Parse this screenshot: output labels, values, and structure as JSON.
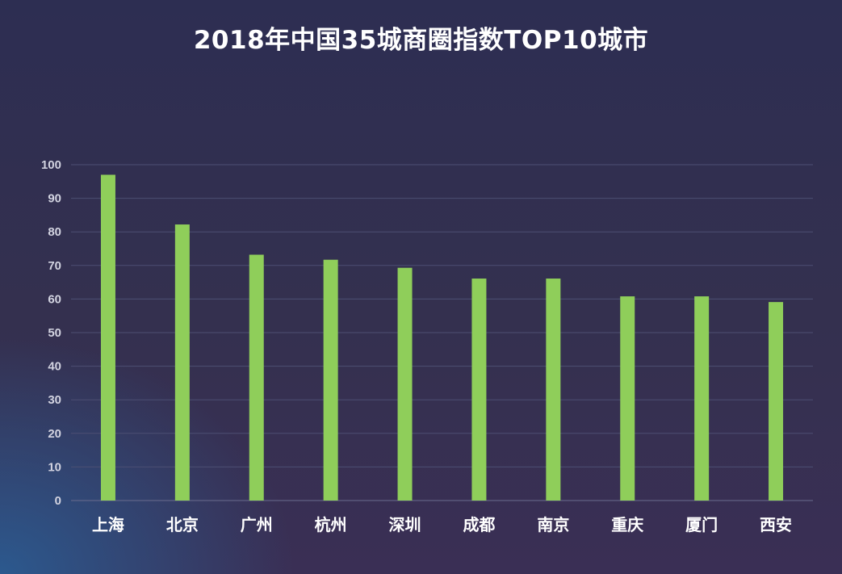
{
  "chart_data": {
    "type": "bar",
    "title": "2018年中国35城商圈指数TOP10城市",
    "categories": [
      "上海",
      "北京",
      "广州",
      "杭州",
      "深圳",
      "成都",
      "南京",
      "重庆",
      "厦门",
      "西安"
    ],
    "values": [
      97,
      82.2,
      73.2,
      71.7,
      69.3,
      66.1,
      66.1,
      60.8,
      60.8,
      59.1
    ],
    "ylim": [
      0,
      100
    ],
    "yticks": [
      "0",
      "10",
      "20",
      "30",
      "40",
      "50",
      "60",
      "70",
      "80",
      "90",
      "100"
    ],
    "grid": true,
    "bar_color": "#8fce5a"
  }
}
